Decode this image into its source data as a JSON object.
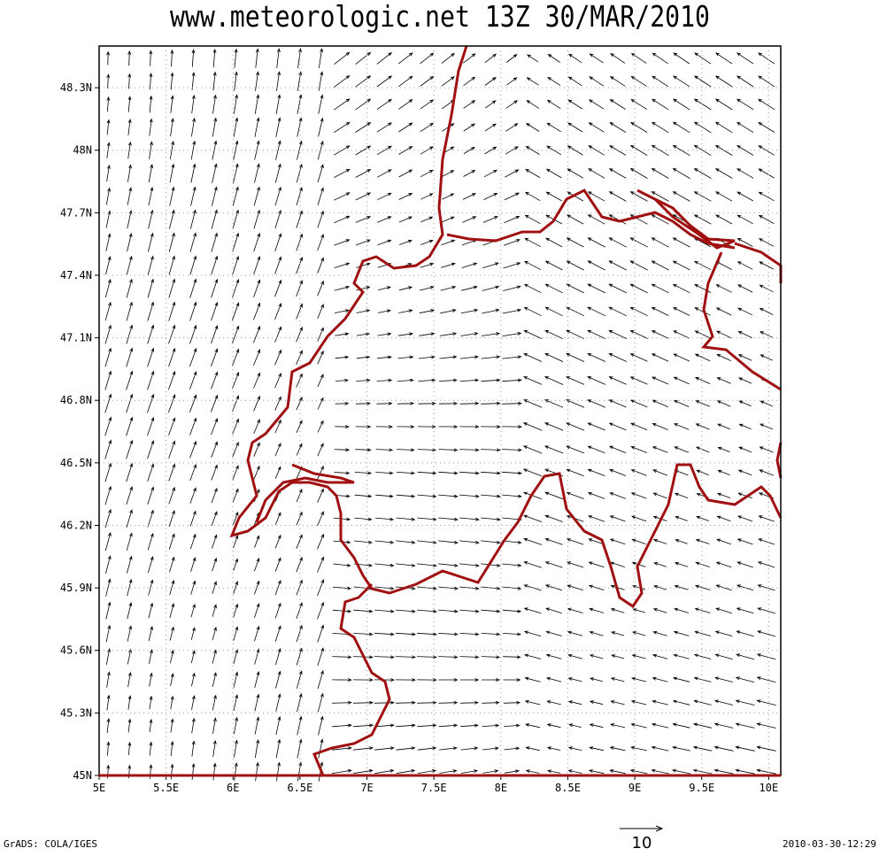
{
  "title": "www.meteorologic.net  13Z 30/MAR/2010",
  "map": {
    "xlim": [
      5,
      10.09
    ],
    "ylim": [
      45,
      48.5
    ],
    "xticks": [
      {
        "value": 5,
        "label": "5E"
      },
      {
        "value": 5.5,
        "label": "5.5E"
      },
      {
        "value": 6,
        "label": "6E"
      },
      {
        "value": 6.5,
        "label": "6.5E"
      },
      {
        "value": 7,
        "label": "7E"
      },
      {
        "value": 7.5,
        "label": "7.5E"
      },
      {
        "value": 8,
        "label": "8E"
      },
      {
        "value": 8.5,
        "label": "8.5E"
      },
      {
        "value": 9,
        "label": "9E"
      },
      {
        "value": 9.5,
        "label": "9.5E"
      },
      {
        "value": 10,
        "label": "10E"
      }
    ],
    "yticks": [
      {
        "value": 45,
        "label": "45N"
      },
      {
        "value": 45.3,
        "label": "45.3N"
      },
      {
        "value": 45.6,
        "label": "45.6N"
      },
      {
        "value": 45.9,
        "label": "45.9N"
      },
      {
        "value": 46.2,
        "label": "46.2N"
      },
      {
        "value": 46.5,
        "label": "46.5N"
      },
      {
        "value": 46.8,
        "label": "46.8N"
      },
      {
        "value": 47.1,
        "label": "47.1N"
      },
      {
        "value": 47.4,
        "label": "47.4N"
      },
      {
        "value": 47.7,
        "label": "47.7N"
      },
      {
        "value": 48,
        "label": "48N"
      },
      {
        "value": 48.3,
        "label": "48.3N"
      }
    ]
  },
  "reference_vector": "10",
  "footer": {
    "left": "GrADS: COLA/IGES",
    "right": "2010-03-30-12:29"
  }
}
